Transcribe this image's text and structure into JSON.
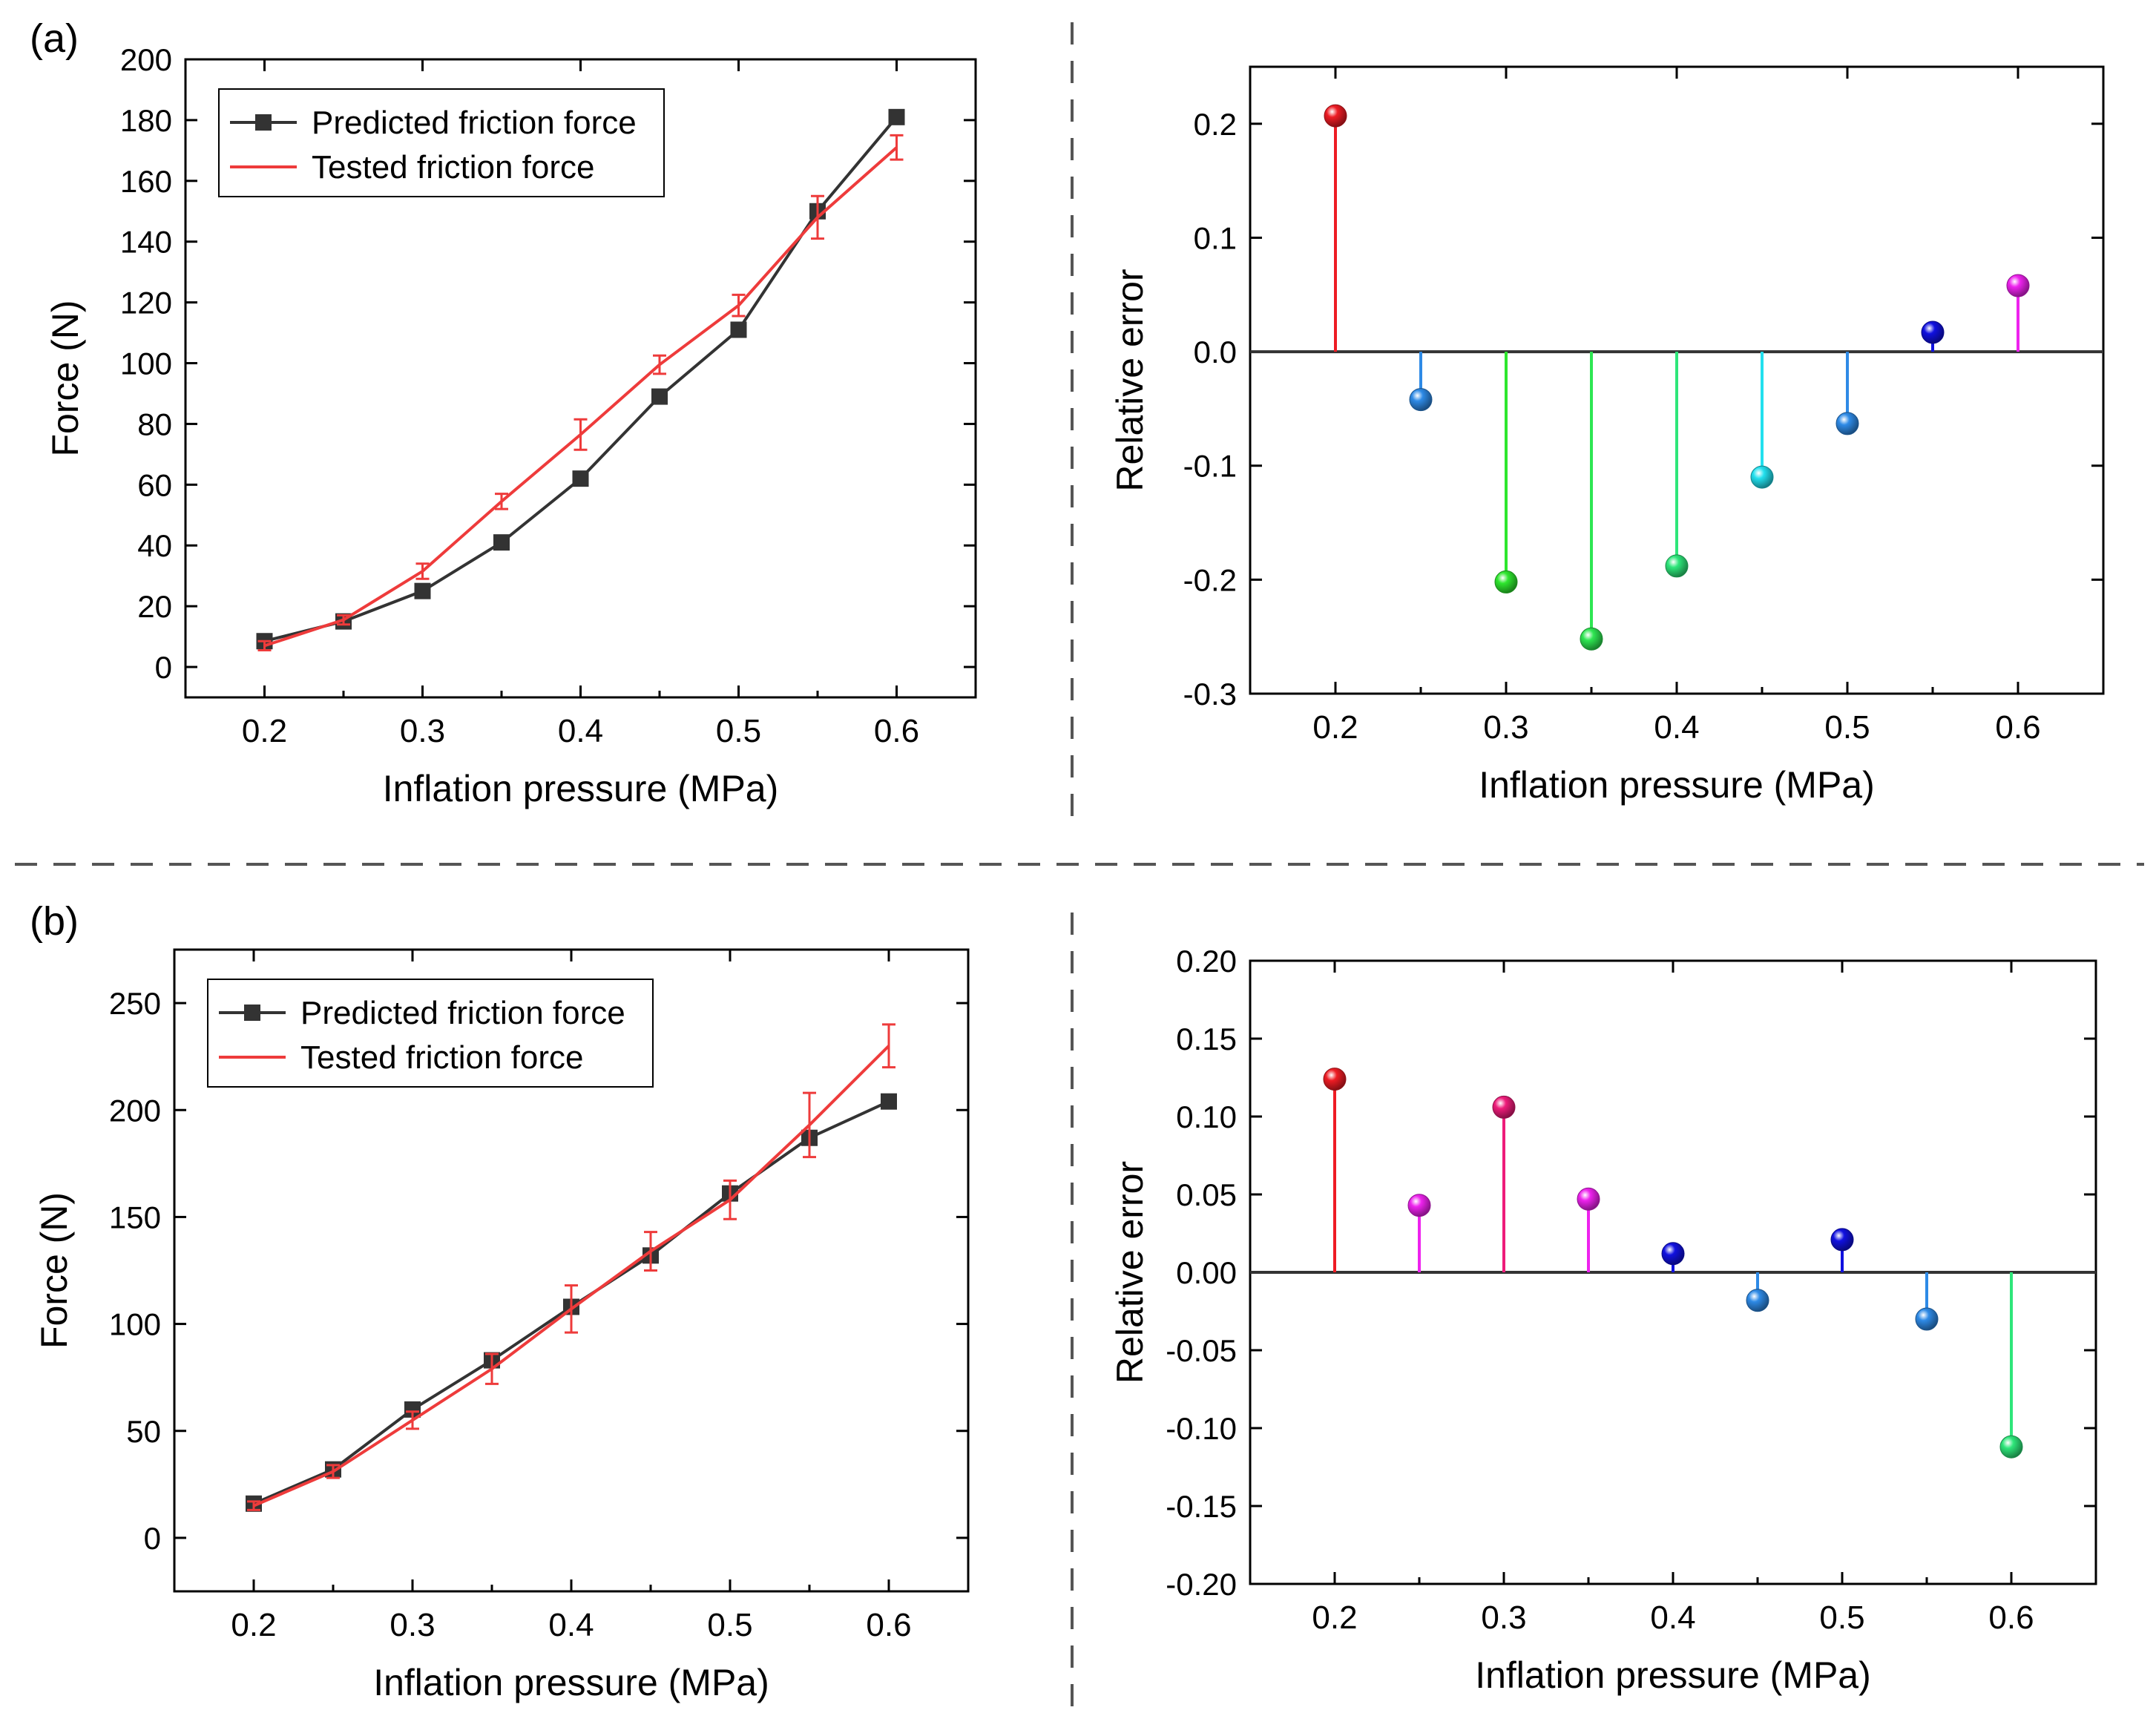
{
  "panels": [
    {
      "label": "(a)"
    },
    {
      "label": "(b)"
    }
  ],
  "colors": {
    "predicted": "#333333",
    "tested": "#ee3b3b",
    "separator": "#555555"
  },
  "chart_data": [
    {
      "id": "a-force",
      "type": "line",
      "xlabel": "Inflation pressure (MPa)",
      "ylabel": "Force (N)",
      "xlim": [
        0.15,
        0.65
      ],
      "ylim": [
        -10,
        200
      ],
      "xticks": [
        0.2,
        0.3,
        0.4,
        0.5,
        0.6
      ],
      "xtick_labels": [
        "0.2",
        "0.3",
        "0.4",
        "0.5",
        "0.6"
      ],
      "yticks": [
        0,
        20,
        40,
        60,
        80,
        100,
        120,
        140,
        160,
        180,
        200
      ],
      "ytick_labels": [
        "0",
        "20",
        "40",
        "60",
        "80",
        "100",
        "120",
        "140",
        "160",
        "180",
        "200"
      ],
      "legend": {
        "position": "top-left",
        "predicted_label": "Predicted friction force",
        "tested_label": "Tested friction force"
      },
      "x": [
        0.2,
        0.25,
        0.3,
        0.35,
        0.4,
        0.45,
        0.5,
        0.55,
        0.6
      ],
      "series": [
        {
          "name": "Predicted friction force",
          "role": "predicted",
          "values": [
            8.5,
            15,
            25,
            41,
            62,
            89,
            111,
            150,
            181
          ]
        },
        {
          "name": "Tested friction force",
          "role": "tested",
          "values": [
            7,
            15.5,
            31.5,
            54.5,
            76.5,
            99.5,
            119,
            148,
            171
          ],
          "errors": [
            1.5,
            1.5,
            2.5,
            2.5,
            5,
            3,
            3.5,
            7,
            4
          ]
        }
      ]
    },
    {
      "id": "a-error",
      "type": "stem",
      "xlabel": "Inflation pressure (MPa)",
      "ylabel": "Relative error",
      "xlim": [
        0.15,
        0.65
      ],
      "ylim": [
        -0.3,
        0.25
      ],
      "xticks": [
        0.2,
        0.3,
        0.4,
        0.5,
        0.6
      ],
      "xtick_labels": [
        "0.2",
        "0.3",
        "0.4",
        "0.5",
        "0.6"
      ],
      "yticks": [
        -0.3,
        -0.2,
        -0.1,
        0.0,
        0.1,
        0.2
      ],
      "ytick_labels": [
        "-0.3",
        "-0.2",
        "-0.1",
        "0.0",
        "0.1",
        "0.2"
      ],
      "x": [
        0.2,
        0.25,
        0.3,
        0.35,
        0.4,
        0.45,
        0.5,
        0.55,
        0.6
      ],
      "values": [
        0.207,
        -0.042,
        -0.202,
        -0.252,
        -0.188,
        -0.11,
        -0.063,
        0.017,
        0.058
      ],
      "colors": [
        "#ee1c24",
        "#2e8ae6",
        "#2ee62e",
        "#2ee652",
        "#2ee67a",
        "#22e0ee",
        "#2e8ae6",
        "#1010e0",
        "#ee22ee"
      ]
    },
    {
      "id": "b-force",
      "type": "line",
      "xlabel": "Inflation pressure (MPa)",
      "ylabel": "Force (N)",
      "xlim": [
        0.15,
        0.65
      ],
      "ylim": [
        -25,
        275
      ],
      "xticks": [
        0.2,
        0.3,
        0.4,
        0.5,
        0.6
      ],
      "xtick_labels": [
        "0.2",
        "0.3",
        "0.4",
        "0.5",
        "0.6"
      ],
      "yticks": [
        0,
        50,
        100,
        150,
        200,
        250
      ],
      "ytick_labels": [
        "0",
        "50",
        "100",
        "150",
        "200",
        "250"
      ],
      "legend": {
        "position": "top-left",
        "predicted_label": "Predicted friction force",
        "tested_label": "Tested friction force"
      },
      "x": [
        0.2,
        0.25,
        0.3,
        0.35,
        0.4,
        0.45,
        0.5,
        0.55,
        0.6
      ],
      "series": [
        {
          "name": "Predicted friction force",
          "role": "predicted",
          "values": [
            16,
            32,
            60,
            83,
            108,
            132,
            161,
            187,
            204
          ]
        },
        {
          "name": "Tested friction force",
          "role": "tested",
          "values": [
            15,
            31,
            55,
            79,
            107,
            134,
            158,
            193,
            230
          ],
          "errors": [
            2,
            3,
            4,
            7,
            11,
            9,
            9,
            15,
            10
          ]
        }
      ]
    },
    {
      "id": "b-error",
      "type": "stem",
      "xlabel": "Inflation pressure (MPa)",
      "ylabel": "Relative error",
      "xlim": [
        0.15,
        0.65
      ],
      "ylim": [
        -0.2,
        0.2
      ],
      "xticks": [
        0.2,
        0.3,
        0.4,
        0.5,
        0.6
      ],
      "xtick_labels": [
        "0.2",
        "0.3",
        "0.4",
        "0.5",
        "0.6"
      ],
      "yticks": [
        -0.2,
        -0.15,
        -0.1,
        -0.05,
        0.0,
        0.05,
        0.1,
        0.15,
        0.2
      ],
      "ytick_labels": [
        "-0.20",
        "-0.15",
        "-0.10",
        "-0.05",
        "0.00",
        "0.05",
        "0.10",
        "0.15",
        "0.20"
      ],
      "x": [
        0.2,
        0.25,
        0.3,
        0.35,
        0.4,
        0.45,
        0.5,
        0.55,
        0.6
      ],
      "values": [
        0.124,
        0.043,
        0.106,
        0.047,
        0.012,
        -0.018,
        0.021,
        -0.03,
        -0.112
      ],
      "colors": [
        "#ee1c24",
        "#ee22ee",
        "#ee1c7a",
        "#ee22ee",
        "#1010e0",
        "#2e8ae6",
        "#1010e0",
        "#2e8ae6",
        "#2ee67a"
      ]
    }
  ]
}
